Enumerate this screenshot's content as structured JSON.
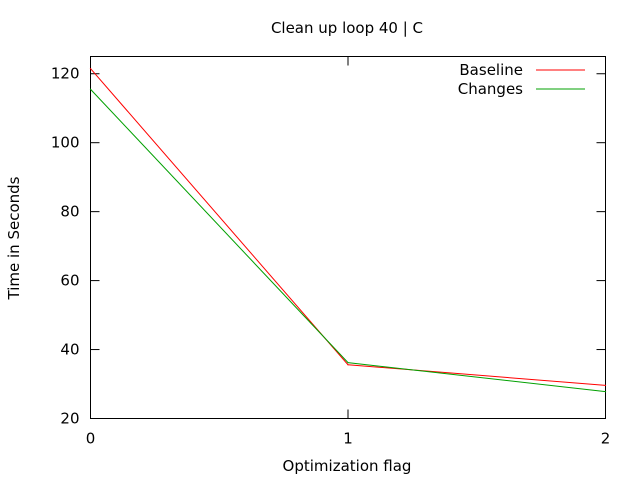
{
  "chart_data": {
    "type": "line",
    "title": "Clean up loop 40 | C",
    "xlabel": "Optimization flag",
    "ylabel": "Time in Seconds",
    "x": [
      0,
      1,
      2
    ],
    "xticks": [
      "0",
      "1",
      "2"
    ],
    "yticks": [
      "20",
      "40",
      "60",
      "80",
      "100",
      "120"
    ],
    "xlim": [
      0,
      2
    ],
    "ylim": [
      20,
      125
    ],
    "grid": false,
    "legend_position": "top-right",
    "series": [
      {
        "name": "Baseline",
        "color": "#ff0000",
        "values": [
          121.5,
          35.6,
          29.6
        ]
      },
      {
        "name": "Changes",
        "color": "#00a000",
        "values": [
          115.5,
          36.2,
          27.8
        ]
      }
    ]
  }
}
